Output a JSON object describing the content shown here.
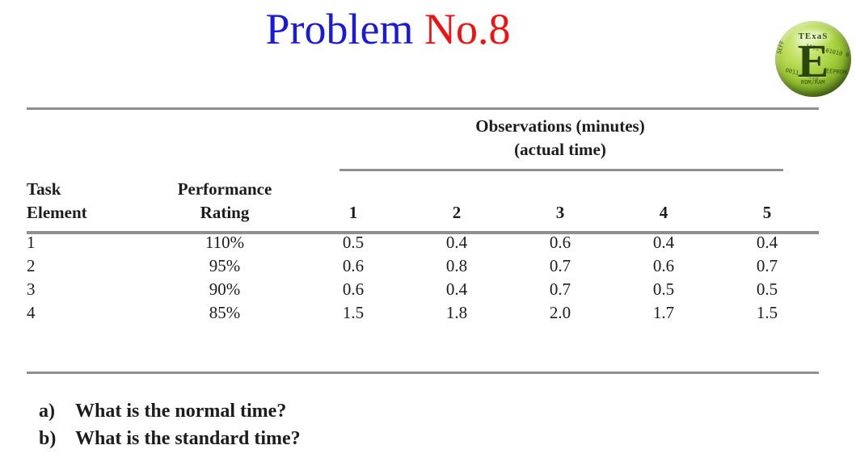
{
  "title": {
    "part_blue": "Problem ",
    "part_red": "No.8"
  },
  "colors": {
    "title_blue": "#1a1ad9",
    "title_red": "#f21111",
    "table_rule_gray": "#8f8f8f",
    "logo_green": "#a2cc38",
    "logo_dark_green": "#2c470d"
  },
  "logo": {
    "name": "TExaS",
    "letter": "E",
    "fragments": [
      "5EFF",
      "1011 101010 0",
      "EEPROM",
      "ROM/RAM",
      "0011 00110"
    ]
  },
  "table": {
    "obs_header_line1": "Observations (minutes)",
    "obs_header_line2": "(actual time)",
    "col1_header_line1": "Task",
    "col1_header_line2": "Element",
    "col2_header_line1": "Performance",
    "col2_header_line2": "Rating",
    "obs_cols": [
      "1",
      "2",
      "3",
      "4",
      "5"
    ],
    "rows": [
      {
        "task": "1",
        "rating": "110%",
        "obs": [
          "0.5",
          "0.4",
          "0.6",
          "0.4",
          "0.4"
        ]
      },
      {
        "task": "2",
        "rating": "95%",
        "obs": [
          "0.6",
          "0.8",
          "0.7",
          "0.6",
          "0.7"
        ]
      },
      {
        "task": "3",
        "rating": "90%",
        "obs": [
          "0.6",
          "0.4",
          "0.7",
          "0.5",
          "0.5"
        ]
      },
      {
        "task": "4",
        "rating": "85%",
        "obs": [
          "1.5",
          "1.8",
          "2.0",
          "1.7",
          "1.5"
        ]
      }
    ]
  },
  "questions": [
    {
      "label": "a)",
      "text": "What is the normal time?"
    },
    {
      "label": "b)",
      "text": "What is the standard time?"
    }
  ]
}
